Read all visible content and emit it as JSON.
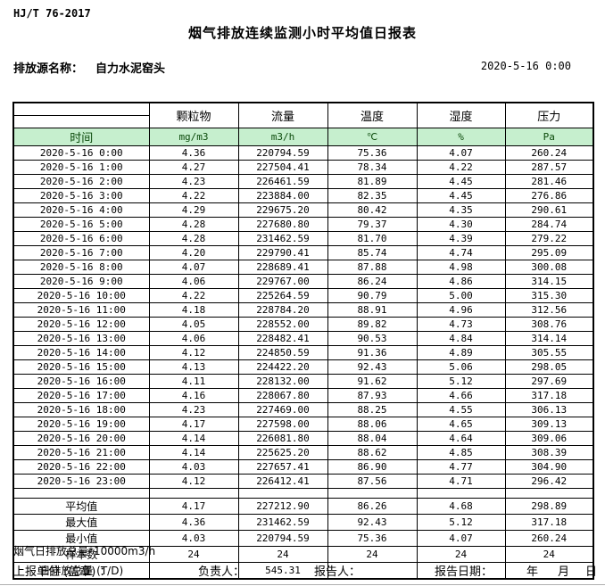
{
  "header": {
    "standard": "HJ/T  76-2017",
    "title": "烟气排放连续监测小时平均值日报表",
    "source_label": "排放源名称：",
    "source_name": "自力水泥窑头",
    "datetime": "2020-5-16  0:00"
  },
  "table": {
    "time_header": "时间",
    "columns": [
      {
        "name": "颗粒物",
        "unit": "mg/m3"
      },
      {
        "name": "流量",
        "unit": "m3/h"
      },
      {
        "name": "温度",
        "unit": "℃"
      },
      {
        "name": "湿度",
        "unit": "%"
      },
      {
        "name": "压力",
        "unit": "Pa"
      }
    ],
    "rows": [
      {
        "time": "2020-5-16  0:00",
        "values": [
          "4.36",
          "220794.59",
          "75.36",
          "4.07",
          "260.24"
        ]
      },
      {
        "time": "2020-5-16  1:00",
        "values": [
          "4.27",
          "227504.41",
          "78.34",
          "4.22",
          "287.57"
        ]
      },
      {
        "time": "2020-5-16  2:00",
        "values": [
          "4.23",
          "226461.59",
          "81.89",
          "4.45",
          "281.46"
        ]
      },
      {
        "time": "2020-5-16  3:00",
        "values": [
          "4.22",
          "223884.00",
          "82.35",
          "4.45",
          "276.86"
        ]
      },
      {
        "time": "2020-5-16  4:00",
        "values": [
          "4.29",
          "229675.20",
          "80.42",
          "4.35",
          "290.61"
        ]
      },
      {
        "time": "2020-5-16  5:00",
        "values": [
          "4.28",
          "227680.80",
          "79.37",
          "4.30",
          "284.74"
        ]
      },
      {
        "time": "2020-5-16  6:00",
        "values": [
          "4.28",
          "231462.59",
          "81.70",
          "4.39",
          "279.22"
        ]
      },
      {
        "time": "2020-5-16  7:00",
        "values": [
          "4.20",
          "229790.41",
          "85.74",
          "4.74",
          "295.09"
        ]
      },
      {
        "time": "2020-5-16  8:00",
        "values": [
          "4.07",
          "228689.41",
          "87.88",
          "4.98",
          "300.08"
        ]
      },
      {
        "time": "2020-5-16  9:00",
        "values": [
          "4.06",
          "229767.00",
          "86.24",
          "4.86",
          "314.15"
        ]
      },
      {
        "time": "2020-5-16 10:00",
        "values": [
          "4.22",
          "225264.59",
          "90.79",
          "5.00",
          "315.30"
        ]
      },
      {
        "time": "2020-5-16 11:00",
        "values": [
          "4.18",
          "228784.20",
          "88.91",
          "4.96",
          "312.56"
        ]
      },
      {
        "time": "2020-5-16 12:00",
        "values": [
          "4.05",
          "228552.00",
          "89.82",
          "4.73",
          "308.76"
        ]
      },
      {
        "time": "2020-5-16 13:00",
        "values": [
          "4.06",
          "228482.41",
          "90.53",
          "4.84",
          "314.14"
        ]
      },
      {
        "time": "2020-5-16 14:00",
        "values": [
          "4.12",
          "224850.59",
          "91.36",
          "4.89",
          "305.55"
        ]
      },
      {
        "time": "2020-5-16 15:00",
        "values": [
          "4.13",
          "224422.20",
          "92.43",
          "5.06",
          "298.05"
        ]
      },
      {
        "time": "2020-5-16 16:00",
        "values": [
          "4.11",
          "228132.00",
          "91.62",
          "5.12",
          "297.69"
        ]
      },
      {
        "time": "2020-5-16 17:00",
        "values": [
          "4.16",
          "228067.80",
          "87.93",
          "4.66",
          "317.18"
        ]
      },
      {
        "time": "2020-5-16 18:00",
        "values": [
          "4.23",
          "227469.00",
          "88.25",
          "4.55",
          "306.13"
        ]
      },
      {
        "time": "2020-5-16 19:00",
        "values": [
          "4.17",
          "227598.00",
          "88.06",
          "4.65",
          "309.13"
        ]
      },
      {
        "time": "2020-5-16 20:00",
        "values": [
          "4.14",
          "226081.80",
          "88.04",
          "4.64",
          "309.06"
        ]
      },
      {
        "time": "2020-5-16 21:00",
        "values": [
          "4.14",
          "225625.20",
          "88.62",
          "4.85",
          "308.39"
        ]
      },
      {
        "time": "2020-5-16 22:00",
        "values": [
          "4.03",
          "227657.41",
          "86.90",
          "4.77",
          "304.90"
        ]
      },
      {
        "time": "2020-5-16 23:00",
        "values": [
          "4.12",
          "226412.41",
          "87.56",
          "4.71",
          "296.42"
        ]
      }
    ],
    "summary": [
      {
        "label": "平均值",
        "values": [
          "4.17",
          "227212.90",
          "86.26",
          "4.68",
          "298.89"
        ]
      },
      {
        "label": "最大值",
        "values": [
          "4.36",
          "231462.59",
          "92.43",
          "5.12",
          "317.18"
        ]
      },
      {
        "label": "最小值",
        "values": [
          "4.03",
          "220794.59",
          "75.36",
          "4.07",
          "260.24"
        ]
      },
      {
        "label": "样本数",
        "values": [
          "24",
          "24",
          "24",
          "24",
          "24"
        ]
      },
      {
        "label": "日排放总量 (T/D)",
        "values": [
          "",
          "545.31",
          "",
          "",
          ""
        ]
      }
    ]
  },
  "footer": {
    "note": "烟气日排放总量*10000m3/h",
    "report_unit_label": "上报单位 (盖章) ：",
    "responsible_label": "负责人：",
    "reporter_label": "报告人：",
    "report_date_label": "报告日期：",
    "year_label": "年",
    "month_label": "月",
    "day_label": "日"
  },
  "colors": {
    "header_row_bg": "#c6efce",
    "header_row_text": "#0b4a0b",
    "border": "#000000",
    "bottom_rule": "#b0b0b0"
  }
}
